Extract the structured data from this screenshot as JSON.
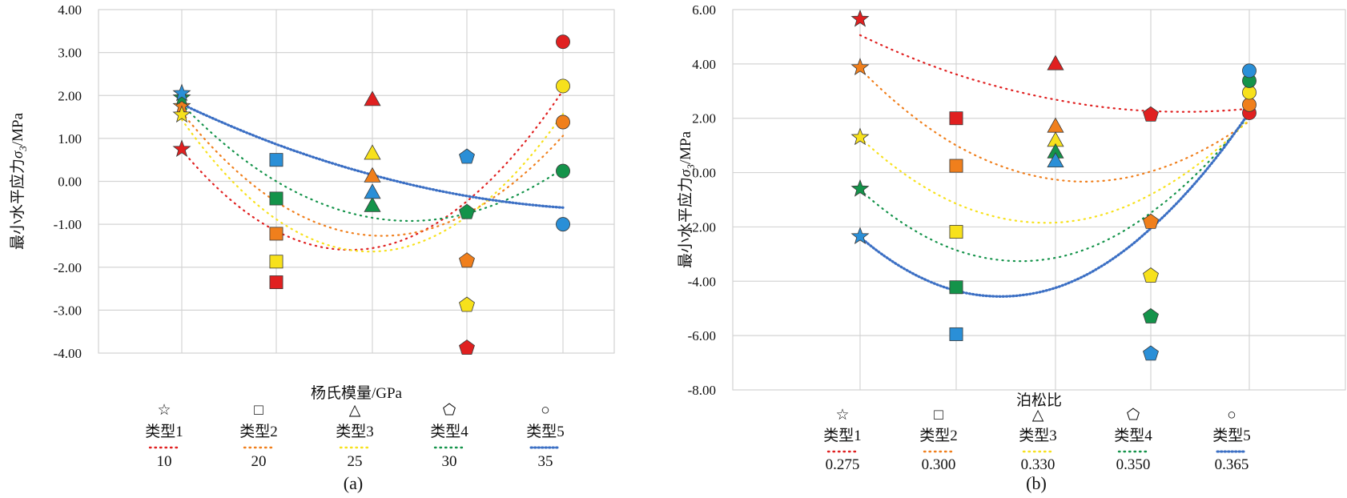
{
  "legend_symbols": [
    "☆",
    "□",
    "△",
    "⬠",
    "○"
  ],
  "type_colors": {
    "1": "#e02020",
    "2": "#f07f1c",
    "3": "#f7e11c",
    "4": "#14934a",
    "5": "#2a8fd7"
  },
  "trend_colors": {
    "1": "#e02020",
    "2": "#f07f1c",
    "3": "#f7e11c",
    "4": "#14934a",
    "5": "#3b6fc4"
  },
  "marker_shapes": [
    "star",
    "square",
    "triangle",
    "pentagon",
    "circle"
  ],
  "chart_data": [
    {
      "type": "scatter",
      "panel_label": "(a)",
      "xlabel": "杨氏模量/GPa",
      "ylabel_prefix": "最小水平应力",
      "ylabel_symbol": "σ",
      "ylabel_sub": "3",
      "ylabel_suffix": "/MPa",
      "ylim": [
        -4,
        4
      ],
      "yticks": [
        "4.00",
        "3.00",
        "2.00",
        "1.00",
        "0.00",
        "-1.00",
        "-2.00",
        "-3.00",
        "-4.00"
      ],
      "grid": true,
      "categories": [
        "10",
        "20",
        "25",
        "30",
        "35"
      ],
      "legend_labels": [
        "类型1",
        "类型2",
        "类型3",
        "类型4",
        "类型5"
      ],
      "series": [
        {
          "name": "类型1",
          "values": [
            0.75,
            -2.35,
            1.9,
            -3.88,
            3.25
          ]
        },
        {
          "name": "类型2",
          "values": [
            1.75,
            -1.22,
            0.12,
            -1.85,
            1.38
          ]
        },
        {
          "name": "类型3",
          "values": [
            1.55,
            -1.87,
            0.65,
            -2.88,
            2.22
          ]
        },
        {
          "name": "类型4",
          "values": [
            1.95,
            -0.4,
            -0.57,
            -0.72,
            0.24
          ]
        },
        {
          "name": "类型5",
          "values": [
            2.05,
            0.5,
            -0.26,
            0.57,
            -1.0
          ]
        }
      ]
    },
    {
      "type": "scatter",
      "panel_label": "(b)",
      "xlabel": "泊松比",
      "ylabel_prefix": "最小水平应力",
      "ylabel_symbol": "σ",
      "ylabel_sub": "3",
      "ylabel_suffix": "/MPa",
      "ylim": [
        -8,
        6
      ],
      "yticks": [
        "6.00",
        "4.00",
        "2.00",
        "0.00",
        "-2.00",
        "-4.00",
        "-6.00",
        "-8.00"
      ],
      "grid": true,
      "categories": [
        "0.275",
        "0.300",
        "0.330",
        "0.350",
        "0.365"
      ],
      "legend_labels": [
        "类型1",
        "类型2",
        "类型3",
        "类型4",
        "类型5"
      ],
      "series": [
        {
          "name": "类型1",
          "values": [
            5.65,
            2.0,
            4.0,
            2.13,
            2.2
          ]
        },
        {
          "name": "类型2",
          "values": [
            3.87,
            0.25,
            1.7,
            -1.82,
            2.5
          ]
        },
        {
          "name": "类型3",
          "values": [
            1.3,
            -2.18,
            1.18,
            -3.8,
            2.95
          ]
        },
        {
          "name": "类型4",
          "values": [
            -0.6,
            -4.22,
            0.75,
            -5.3,
            3.38
          ]
        },
        {
          "name": "类型5",
          "values": [
            -2.35,
            -5.95,
            0.42,
            -6.67,
            3.75
          ]
        }
      ]
    }
  ]
}
